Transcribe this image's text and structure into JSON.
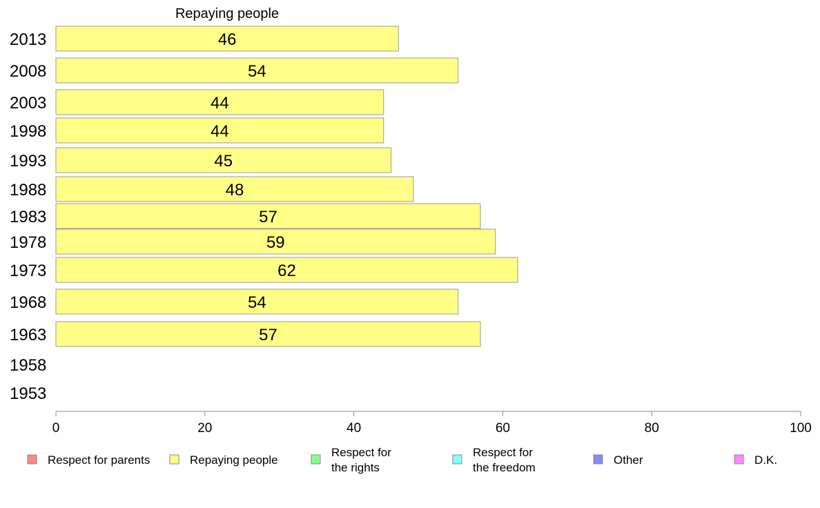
{
  "chart_data": {
    "type": "bar",
    "orientation": "horizontal",
    "title": "Repaying people",
    "categories": [
      "2013",
      "2008",
      "2003",
      "1998",
      "1993",
      "1988",
      "1983",
      "1978",
      "1973",
      "1968",
      "1963",
      "1958",
      "1953"
    ],
    "series": [
      {
        "name": "Repaying people",
        "color": "#ffff88",
        "values": [
          46,
          54,
          44,
          44,
          45,
          48,
          57,
          59,
          62,
          54,
          57,
          null,
          null
        ]
      }
    ],
    "xlim": [
      0,
      100
    ],
    "xticks": [
      0,
      20,
      40,
      60,
      80,
      100
    ],
    "xlabel": "",
    "ylabel": "",
    "grid": false,
    "legend": {
      "placement": "bottom",
      "entries": [
        {
          "label": [
            "Respect for parents"
          ],
          "color": "#ff8888"
        },
        {
          "label": [
            "Repaying people"
          ],
          "color": "#ffff88"
        },
        {
          "label": [
            "Respect for",
            "the rights"
          ],
          "color": "#88ff88"
        },
        {
          "label": [
            "Respect for",
            "the freedom"
          ],
          "color": "#88ffff"
        },
        {
          "label": [
            "Other"
          ],
          "color": "#8888ff"
        },
        {
          "label": [
            "D.K."
          ],
          "color": "#ff88ff"
        }
      ]
    }
  }
}
